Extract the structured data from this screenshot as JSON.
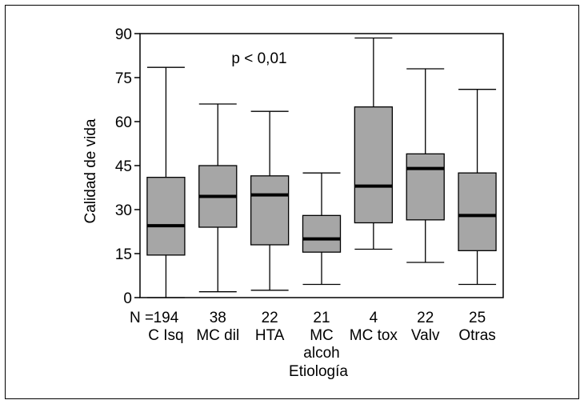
{
  "chart_data": {
    "type": "boxplot",
    "title": "",
    "ylabel": "Calidad de vida",
    "xlabel": "Etiología",
    "ylim": [
      0,
      90
    ],
    "yticks": [
      0,
      15,
      30,
      45,
      60,
      75,
      90
    ],
    "annotation": "p < 0,01",
    "n_prefix": "N =",
    "box_color": "#a6a6a6",
    "categories": [
      {
        "label": [
          "C Isq"
        ],
        "n": "194",
        "min": 0,
        "q1": 14.5,
        "median": 24.5,
        "q3": 41,
        "max": 78.5
      },
      {
        "label": [
          "MC dil"
        ],
        "n": "38",
        "min": 2,
        "q1": 24,
        "median": 34.5,
        "q3": 45,
        "max": 66
      },
      {
        "label": [
          "HTA"
        ],
        "n": "22",
        "min": 2.5,
        "q1": 18,
        "median": 35,
        "q3": 41.5,
        "max": 63.5
      },
      {
        "label": [
          "MC",
          "alcoh"
        ],
        "n": "21",
        "min": 4.5,
        "q1": 15.5,
        "median": 20,
        "q3": 28,
        "max": 42.5
      },
      {
        "label": [
          "MC tox"
        ],
        "n": "4",
        "min": 16.5,
        "q1": 25.5,
        "median": 38,
        "q3": 65,
        "max": 88.5
      },
      {
        "label": [
          "Valv"
        ],
        "n": "22",
        "min": 12,
        "q1": 26.5,
        "median": 44,
        "q3": 49,
        "max": 78
      },
      {
        "label": [
          "Otras"
        ],
        "n": "25",
        "min": 4.5,
        "q1": 16,
        "median": 28,
        "q3": 42.5,
        "max": 71
      }
    ]
  }
}
